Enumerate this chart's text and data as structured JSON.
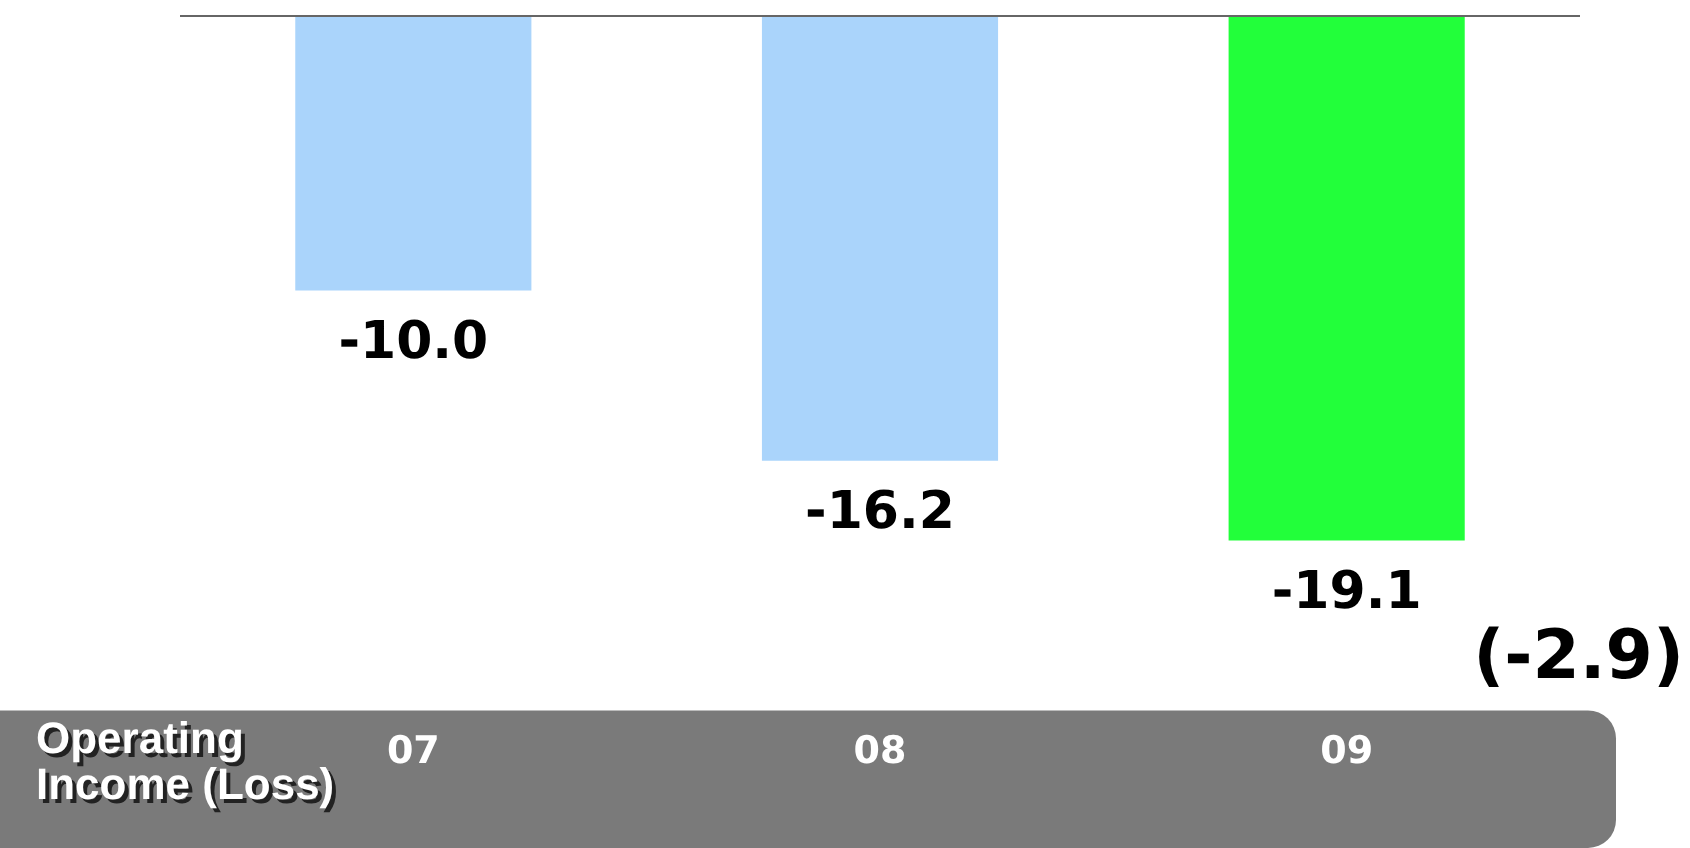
{
  "chart_data": {
    "type": "bar",
    "xlabel": "Operating\nIncome (Loss)",
    "categories": [
      "07",
      "08",
      "09"
    ],
    "values": [
      -10.0,
      -16.2,
      -19.1
    ],
    "colors": [
      "#aad4fb",
      "#aad4fb",
      "#22ff3a"
    ],
    "value_labels": [
      "-10.0",
      "-16.2",
      "-19.1"
    ],
    "annotations": [
      "(-2.9)"
    ],
    "grid": false,
    "legend": false
  }
}
